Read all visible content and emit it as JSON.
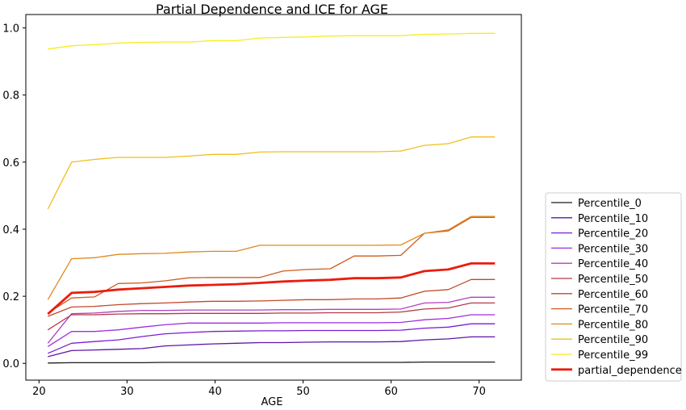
{
  "chart_data": {
    "type": "line",
    "title": "Partial Dependence and ICE for AGE",
    "xlabel": "AGE",
    "ylabel": "",
    "xlim": [
      18.5,
      74.8
    ],
    "ylim": [
      -0.05,
      1.04
    ],
    "xticks": [
      20,
      30,
      40,
      50,
      60,
      70
    ],
    "yticks": [
      0.0,
      0.2,
      0.4,
      0.6,
      0.8,
      1.0
    ],
    "ytick_labels": [
      "0.0",
      "0.2",
      "0.4",
      "0.6",
      "0.8",
      "1.0"
    ],
    "grid": false,
    "legend_position": "outside-right-bottom",
    "x": [
      21.0,
      23.7,
      26.3,
      29.0,
      31.7,
      34.3,
      37.0,
      39.7,
      42.4,
      45.1,
      47.7,
      50.4,
      53.1,
      55.8,
      58.4,
      61.1,
      63.8,
      66.5,
      69.1,
      71.8
    ],
    "series": [
      {
        "name": "Percentile_0",
        "color": "#1a1a1a",
        "width": 1.3,
        "values": [
          0.001,
          0.002,
          0.002,
          0.002,
          0.002,
          0.003,
          0.003,
          0.003,
          0.003,
          0.003,
          0.003,
          0.003,
          0.003,
          0.003,
          0.003,
          0.003,
          0.004,
          0.004,
          0.004,
          0.004
        ]
      },
      {
        "name": "Percentile_10",
        "color": "#5c16a6",
        "width": 1.3,
        "values": [
          0.02,
          0.038,
          0.04,
          0.042,
          0.044,
          0.052,
          0.055,
          0.058,
          0.06,
          0.062,
          0.062,
          0.063,
          0.064,
          0.064,
          0.064,
          0.065,
          0.07,
          0.073,
          0.079,
          0.079
        ]
      },
      {
        "name": "Percentile_20",
        "color": "#7a1fd2",
        "width": 1.3,
        "values": [
          0.03,
          0.06,
          0.065,
          0.07,
          0.08,
          0.088,
          0.092,
          0.095,
          0.096,
          0.097,
          0.097,
          0.098,
          0.098,
          0.098,
          0.098,
          0.099,
          0.105,
          0.108,
          0.118,
          0.118
        ]
      },
      {
        "name": "Percentile_30",
        "color": "#9e2fe0",
        "width": 1.3,
        "values": [
          0.05,
          0.095,
          0.095,
          0.1,
          0.108,
          0.115,
          0.12,
          0.12,
          0.12,
          0.12,
          0.121,
          0.121,
          0.121,
          0.121,
          0.121,
          0.122,
          0.13,
          0.134,
          0.145,
          0.145
        ]
      },
      {
        "name": "Percentile_40",
        "color": "#b03fbf",
        "width": 1.3,
        "values": [
          0.06,
          0.148,
          0.15,
          0.155,
          0.158,
          0.158,
          0.159,
          0.159,
          0.159,
          0.159,
          0.16,
          0.16,
          0.161,
          0.161,
          0.161,
          0.162,
          0.18,
          0.182,
          0.197,
          0.197
        ]
      },
      {
        "name": "Percentile_50",
        "color": "#b53a4a",
        "width": 1.3,
        "values": [
          0.1,
          0.145,
          0.145,
          0.147,
          0.148,
          0.148,
          0.149,
          0.149,
          0.149,
          0.149,
          0.15,
          0.15,
          0.151,
          0.151,
          0.151,
          0.153,
          0.162,
          0.165,
          0.18,
          0.18
        ]
      },
      {
        "name": "Percentile_60",
        "color": "#c04a2a",
        "width": 1.3,
        "values": [
          0.14,
          0.168,
          0.17,
          0.175,
          0.178,
          0.18,
          0.183,
          0.185,
          0.185,
          0.186,
          0.188,
          0.19,
          0.19,
          0.192,
          0.192,
          0.195,
          0.215,
          0.22,
          0.25,
          0.25
        ]
      },
      {
        "name": "Percentile_70",
        "color": "#d05a1f",
        "width": 1.3,
        "values": [
          0.15,
          0.195,
          0.198,
          0.238,
          0.24,
          0.246,
          0.255,
          0.256,
          0.256,
          0.256,
          0.275,
          0.28,
          0.282,
          0.32,
          0.32,
          0.322,
          0.388,
          0.395,
          0.435,
          0.435
        ]
      },
      {
        "name": "Percentile_80",
        "color": "#e08820",
        "width": 1.3,
        "values": [
          0.19,
          0.312,
          0.315,
          0.325,
          0.327,
          0.328,
          0.332,
          0.334,
          0.334,
          0.352,
          0.352,
          0.352,
          0.352,
          0.352,
          0.352,
          0.353,
          0.388,
          0.398,
          0.438,
          0.438
        ]
      },
      {
        "name": "Percentile_90",
        "color": "#f2be1c",
        "width": 1.3,
        "values": [
          0.46,
          0.6,
          0.608,
          0.614,
          0.614,
          0.614,
          0.618,
          0.623,
          0.623,
          0.63,
          0.631,
          0.631,
          0.631,
          0.631,
          0.631,
          0.633,
          0.65,
          0.655,
          0.675,
          0.675
        ]
      },
      {
        "name": "Percentile_99",
        "color": "#f7ec1e",
        "width": 1.3,
        "values": [
          0.937,
          0.947,
          0.95,
          0.955,
          0.957,
          0.958,
          0.958,
          0.962,
          0.962,
          0.97,
          0.972,
          0.973,
          0.976,
          0.977,
          0.977,
          0.977,
          0.981,
          0.982,
          0.984,
          0.984
        ]
      },
      {
        "name": "partial_dependence",
        "color": "#ea1c0d",
        "width": 2.8,
        "values": [
          0.147,
          0.21,
          0.213,
          0.22,
          0.224,
          0.228,
          0.232,
          0.234,
          0.236,
          0.24,
          0.244,
          0.247,
          0.249,
          0.254,
          0.254,
          0.256,
          0.275,
          0.28,
          0.298,
          0.298
        ]
      }
    ]
  }
}
